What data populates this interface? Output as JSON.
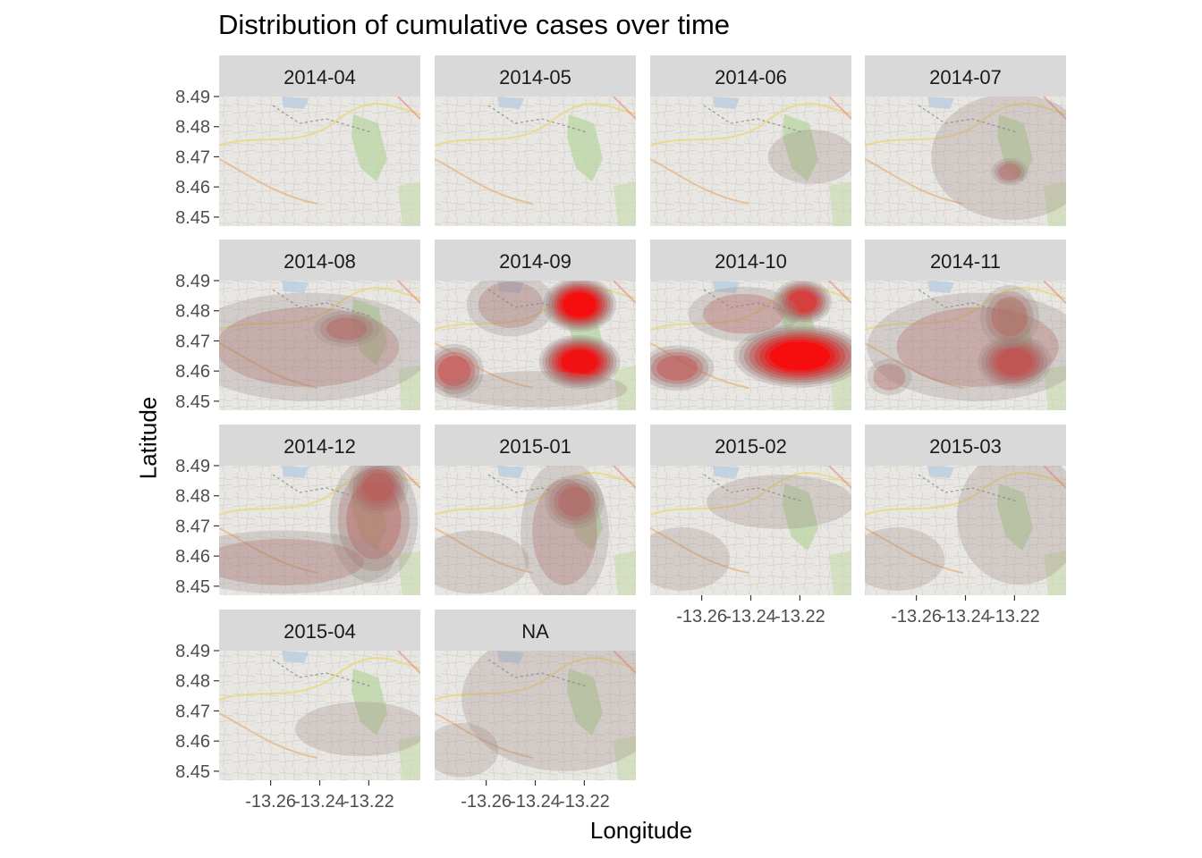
{
  "chart_data": {
    "type": "heatmap",
    "title": "Distribution of cumulative cases over time",
    "xlabel": "Longitude",
    "ylabel": "Latitude",
    "xlim": [
      -13.281,
      -13.199
    ],
    "ylim": [
      8.447,
      8.49
    ],
    "x_ticks": [
      -13.26,
      -13.24,
      -13.22
    ],
    "x_tick_labels": [
      "-13.26",
      "-13.24",
      "-13.22"
    ],
    "y_ticks": [
      8.45,
      8.46,
      8.47,
      8.48,
      8.49
    ],
    "y_tick_labels": [
      "8.45",
      "8.46",
      "8.47",
      "8.48",
      "8.49"
    ],
    "grid": false,
    "legend": "none",
    "basemap": "street map (greyed)",
    "colors": {
      "density_low": "#7a6e6a",
      "density_high": "#ff0000",
      "strip_fill": "#d9d9d9",
      "map_base": "#e9e7e3"
    },
    "facets": [
      {
        "label": "2014-04",
        "hotspots": []
      },
      {
        "label": "2014-05",
        "hotspots": []
      },
      {
        "label": "2014-06",
        "hotspots": [
          {
            "lon": -13.215,
            "lat": 8.47,
            "intensity": 0.15,
            "rx": 0.012,
            "ry": 0.006
          }
        ]
      },
      {
        "label": "2014-07",
        "hotspots": [
          {
            "lon": -13.221,
            "lat": 8.47,
            "intensity": 0.15,
            "rx": 0.022,
            "ry": 0.014
          },
          {
            "lon": -13.222,
            "lat": 8.465,
            "intensity": 0.35,
            "rx": 0.005,
            "ry": 0.003
          }
        ]
      },
      {
        "label": "2014-08",
        "hotspots": [
          {
            "lon": -13.245,
            "lat": 8.468,
            "intensity": 0.2,
            "rx": 0.034,
            "ry": 0.012
          },
          {
            "lon": -13.229,
            "lat": 8.474,
            "intensity": 0.35,
            "rx": 0.009,
            "ry": 0.004
          }
        ]
      },
      {
        "label": "2014-09",
        "hotspots": [
          {
            "lon": -13.222,
            "lat": 8.482,
            "intensity": 1.0,
            "rx": 0.01,
            "ry": 0.006
          },
          {
            "lon": -13.222,
            "lat": 8.463,
            "intensity": 0.95,
            "rx": 0.011,
            "ry": 0.006
          },
          {
            "lon": -13.273,
            "lat": 8.46,
            "intensity": 0.55,
            "rx": 0.008,
            "ry": 0.006
          },
          {
            "lon": -13.25,
            "lat": 8.482,
            "intensity": 0.2,
            "rx": 0.012,
            "ry": 0.007
          },
          {
            "lon": -13.24,
            "lat": 8.454,
            "intensity": 0.15,
            "rx": 0.025,
            "ry": 0.004
          }
        ]
      },
      {
        "label": "2014-10",
        "hotspots": [
          {
            "lon": -13.22,
            "lat": 8.465,
            "intensity": 1.0,
            "rx": 0.018,
            "ry": 0.007
          },
          {
            "lon": -13.219,
            "lat": 8.483,
            "intensity": 0.7,
            "rx": 0.008,
            "ry": 0.005
          },
          {
            "lon": -13.27,
            "lat": 8.461,
            "intensity": 0.45,
            "rx": 0.01,
            "ry": 0.005
          },
          {
            "lon": -13.243,
            "lat": 8.479,
            "intensity": 0.3,
            "rx": 0.015,
            "ry": 0.006
          }
        ]
      },
      {
        "label": "2014-11",
        "hotspots": [
          {
            "lon": -13.22,
            "lat": 8.463,
            "intensity": 0.8,
            "rx": 0.01,
            "ry": 0.006
          },
          {
            "lon": -13.235,
            "lat": 8.468,
            "intensity": 0.25,
            "rx": 0.03,
            "ry": 0.012
          },
          {
            "lon": -13.222,
            "lat": 8.478,
            "intensity": 0.35,
            "rx": 0.008,
            "ry": 0.007
          },
          {
            "lon": -13.271,
            "lat": 8.458,
            "intensity": 0.3,
            "rx": 0.006,
            "ry": 0.004
          }
        ]
      },
      {
        "label": "2014-12",
        "hotspots": [
          {
            "lon": -13.216,
            "lat": 8.483,
            "intensity": 0.65,
            "rx": 0.008,
            "ry": 0.006
          },
          {
            "lon": -13.218,
            "lat": 8.472,
            "intensity": 0.35,
            "rx": 0.012,
            "ry": 0.014
          },
          {
            "lon": -13.255,
            "lat": 8.458,
            "intensity": 0.2,
            "rx": 0.03,
            "ry": 0.007
          }
        ]
      },
      {
        "label": "2015-01",
        "hotspots": [
          {
            "lon": -13.224,
            "lat": 8.478,
            "intensity": 0.5,
            "rx": 0.008,
            "ry": 0.006
          },
          {
            "lon": -13.228,
            "lat": 8.468,
            "intensity": 0.2,
            "rx": 0.012,
            "ry": 0.016
          },
          {
            "lon": -13.265,
            "lat": 8.458,
            "intensity": 0.12,
            "rx": 0.015,
            "ry": 0.007
          }
        ]
      },
      {
        "label": "2015-02",
        "hotspots": [
          {
            "lon": -13.228,
            "lat": 8.478,
            "intensity": 0.15,
            "rx": 0.02,
            "ry": 0.006
          },
          {
            "lon": -13.268,
            "lat": 8.459,
            "intensity": 0.12,
            "rx": 0.013,
            "ry": 0.007
          }
        ]
      },
      {
        "label": "2015-03",
        "hotspots": [
          {
            "lon": -13.218,
            "lat": 8.473,
            "intensity": 0.15,
            "rx": 0.017,
            "ry": 0.015
          },
          {
            "lon": -13.268,
            "lat": 8.459,
            "intensity": 0.12,
            "rx": 0.013,
            "ry": 0.007
          }
        ]
      },
      {
        "label": "2015-04",
        "hotspots": [
          {
            "lon": -13.223,
            "lat": 8.464,
            "intensity": 0.15,
            "rx": 0.018,
            "ry": 0.006
          }
        ]
      },
      {
        "label": "NA",
        "hotspots": [
          {
            "lon": -13.228,
            "lat": 8.474,
            "intensity": 0.15,
            "rx": 0.028,
            "ry": 0.016
          },
          {
            "lon": -13.27,
            "lat": 8.457,
            "intensity": 0.12,
            "rx": 0.01,
            "ry": 0.006
          }
        ]
      }
    ]
  }
}
